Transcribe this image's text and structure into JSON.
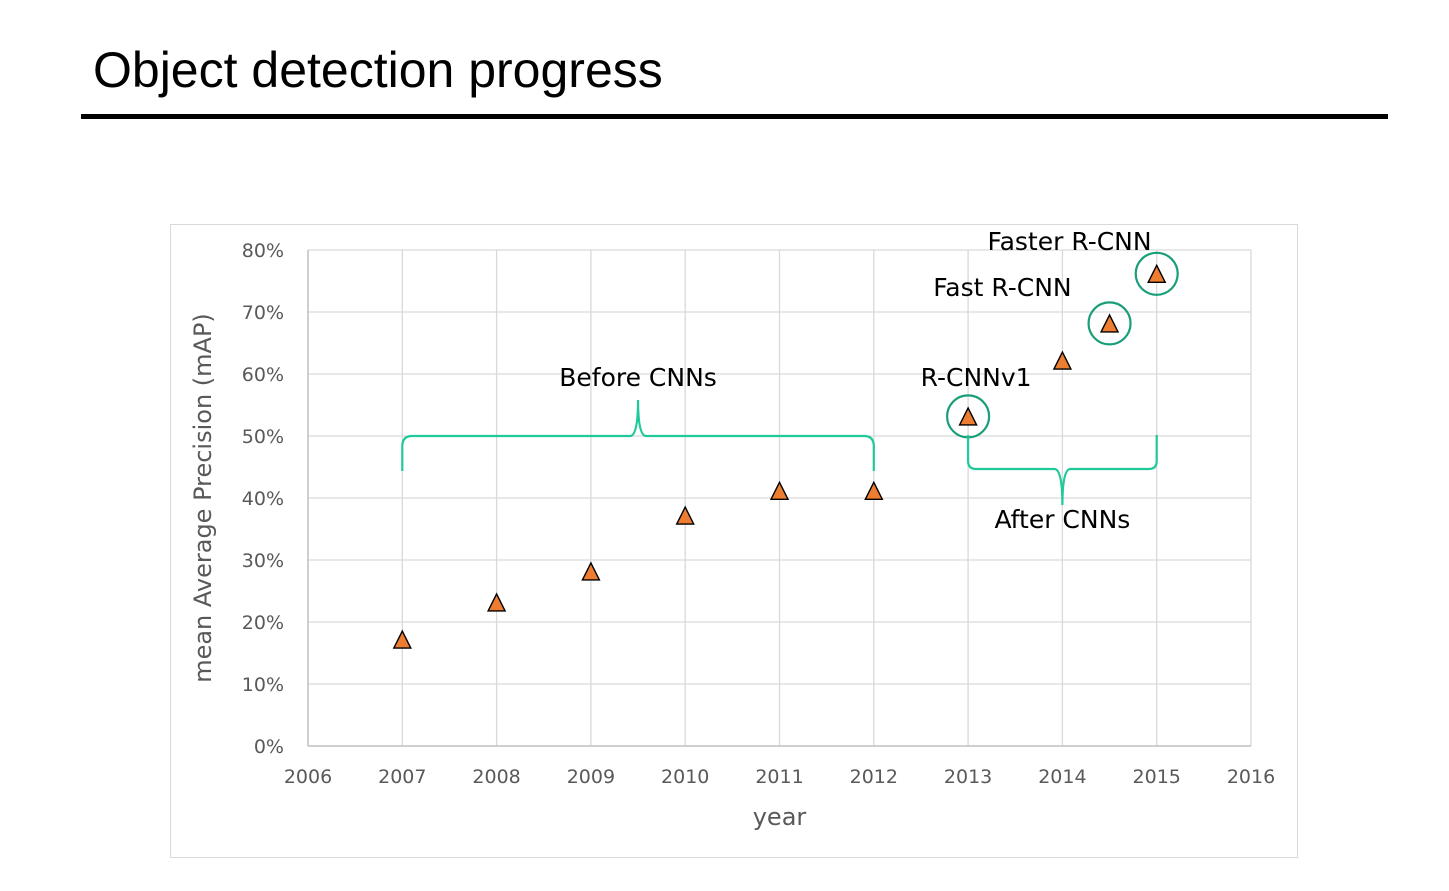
{
  "slide": {
    "title": "Object detection progress"
  },
  "chart_data": {
    "type": "scatter",
    "title": "",
    "xlabel": "year",
    "ylabel": "mean Average Precision (mAP)",
    "xlim": [
      2006,
      2016
    ],
    "ylim": [
      0,
      0.8
    ],
    "x_ticks": [
      2006,
      2007,
      2008,
      2009,
      2010,
      2011,
      2012,
      2013,
      2014,
      2015,
      2016
    ],
    "y_ticks": [
      0,
      0.1,
      0.2,
      0.3,
      0.4,
      0.5,
      0.6,
      0.7,
      0.8
    ],
    "y_tick_labels": [
      "0%",
      "10%",
      "20%",
      "30%",
      "40%",
      "50%",
      "60%",
      "70%",
      "80%"
    ],
    "grid": true,
    "marker": "triangle",
    "marker_color": "#ed7d31",
    "points": [
      {
        "x": 2007,
        "y": 0.17
      },
      {
        "x": 2008,
        "y": 0.23
      },
      {
        "x": 2009,
        "y": 0.28
      },
      {
        "x": 2010,
        "y": 0.37
      },
      {
        "x": 2011,
        "y": 0.41
      },
      {
        "x": 2012,
        "y": 0.41
      },
      {
        "x": 2013,
        "y": 0.53,
        "circled": true
      },
      {
        "x": 2014,
        "y": 0.62
      },
      {
        "x": 2014.5,
        "y": 0.68,
        "circled": true
      },
      {
        "x": 2015,
        "y": 0.76,
        "circled": true
      }
    ],
    "annotations": [
      {
        "text": "Before CNNs"
      },
      {
        "text": "After CNNs"
      },
      {
        "text": "R-CNNv1"
      },
      {
        "text": "Fast R-CNN"
      },
      {
        "text": "Faster R-CNN"
      }
    ],
    "annotation_color": "#1fc99a",
    "circle_color": "#1a9e7a"
  }
}
